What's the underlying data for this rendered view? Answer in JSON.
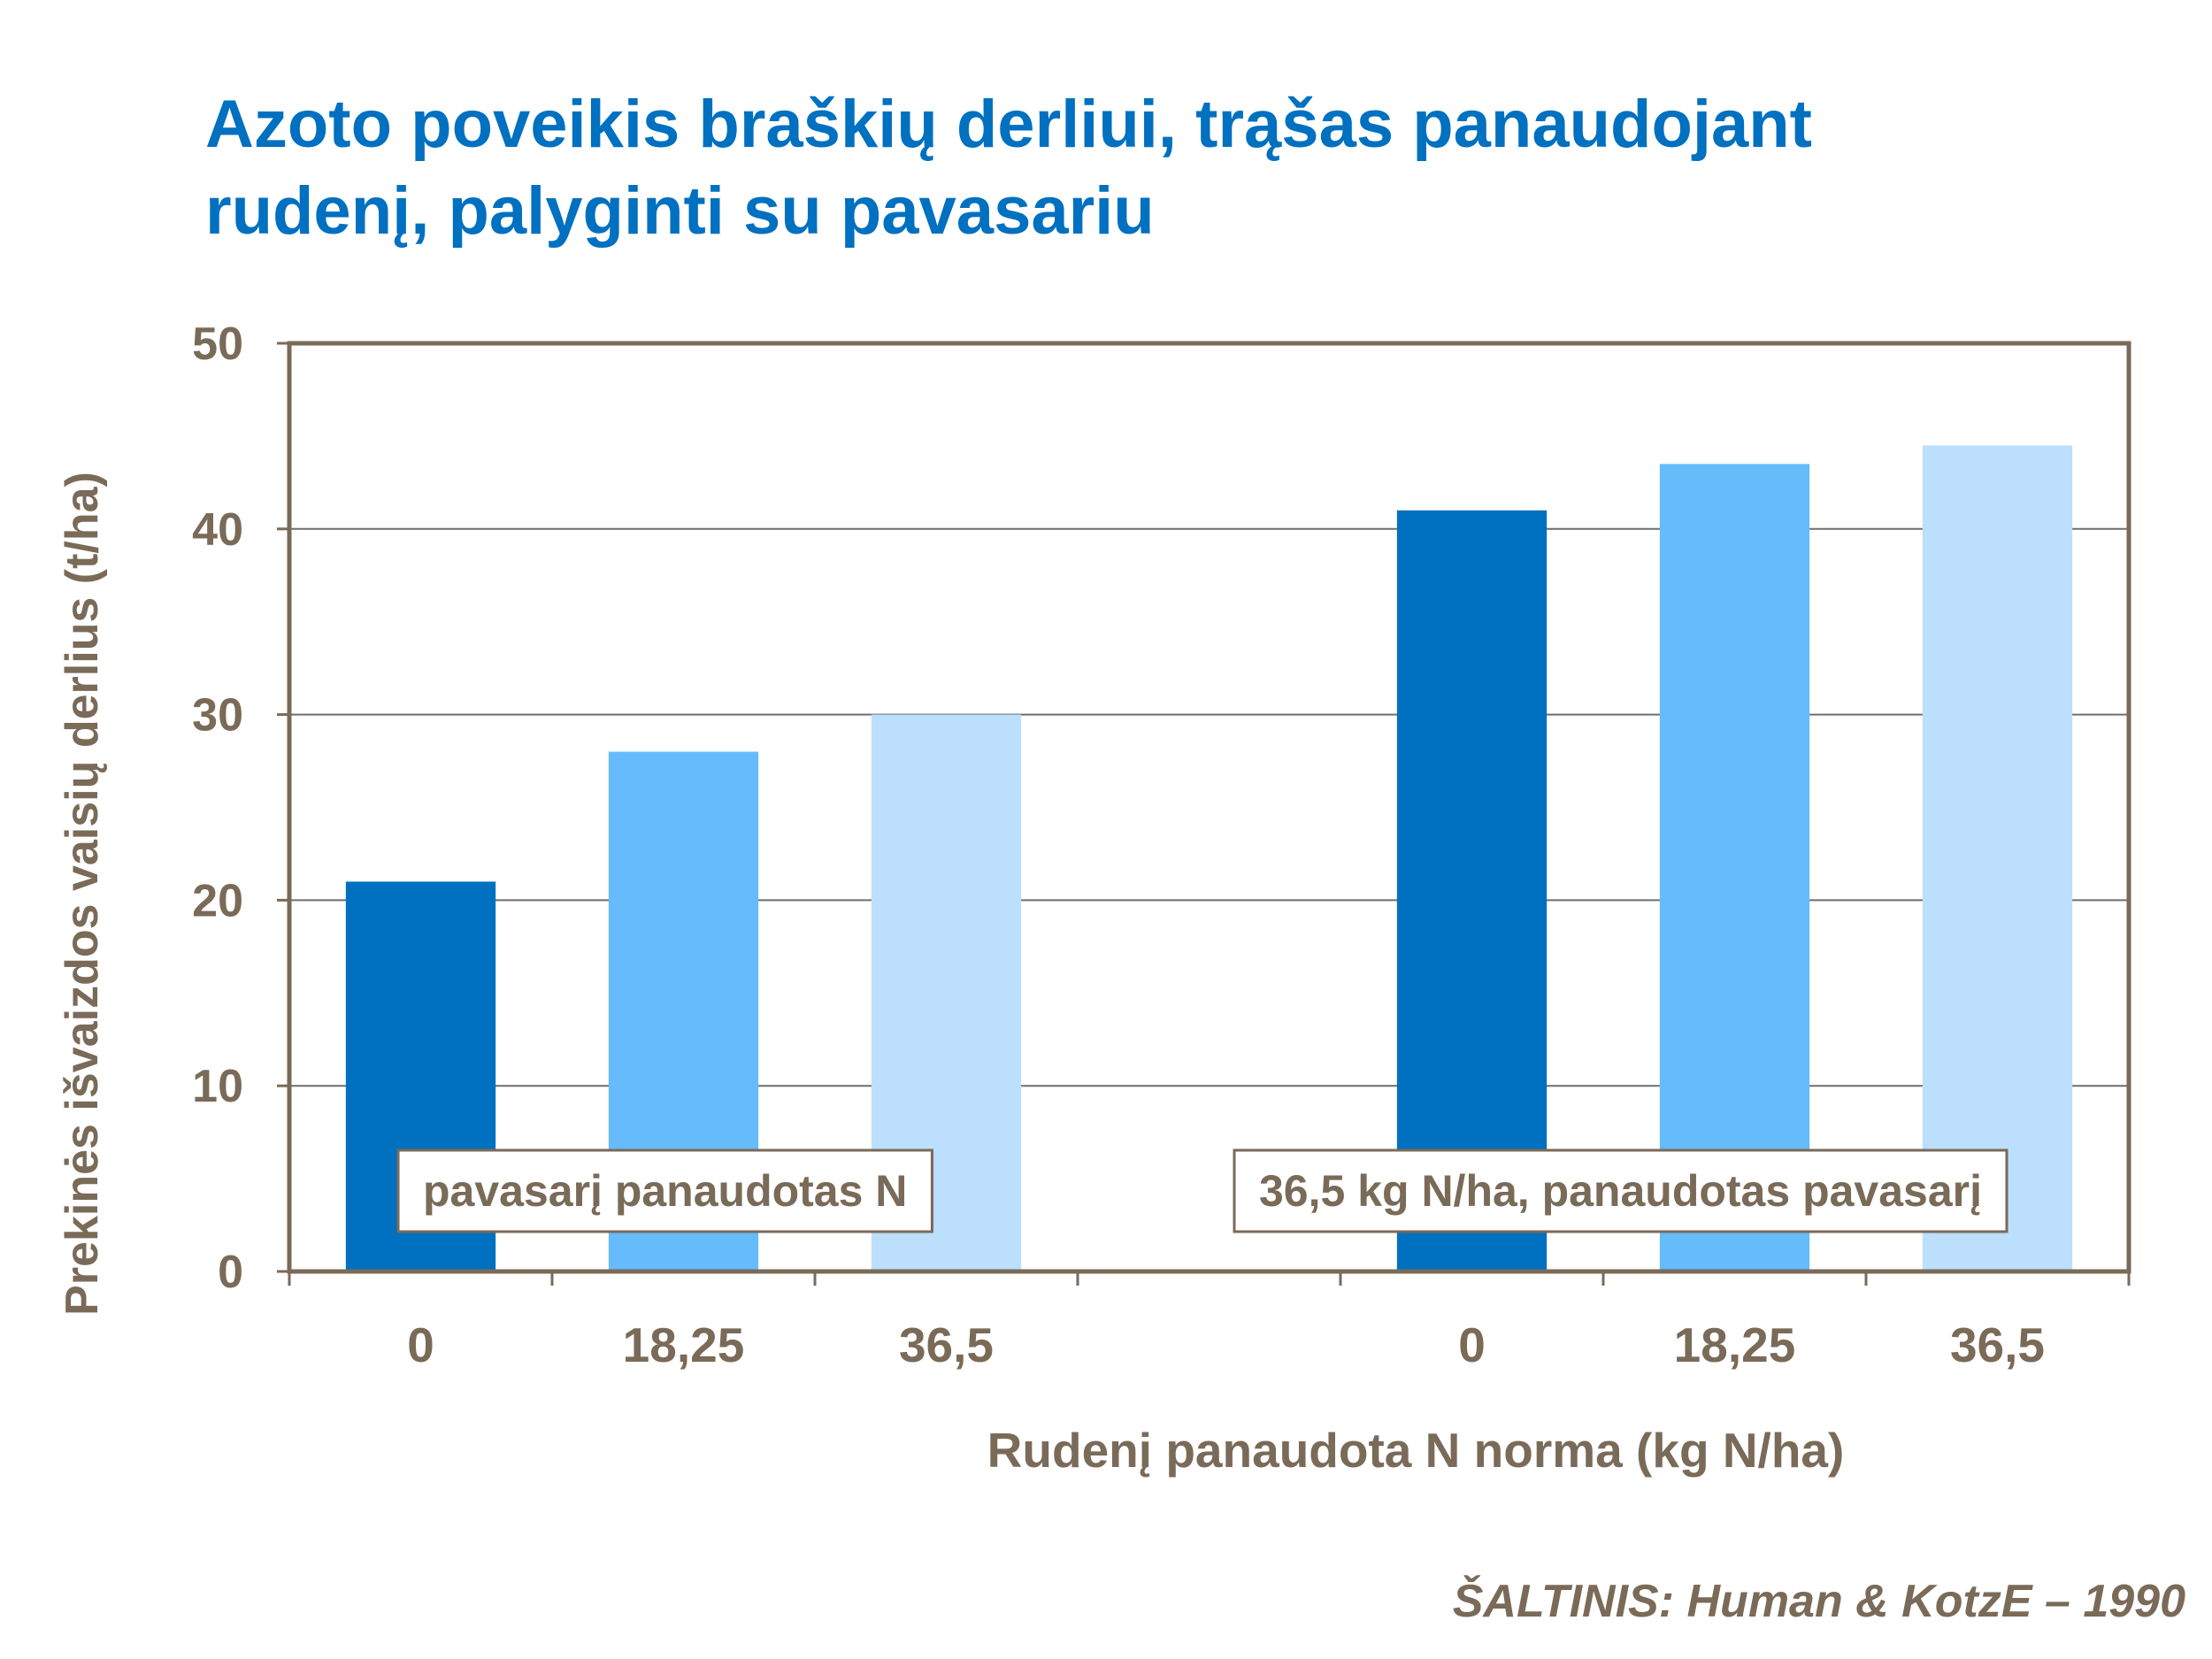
{
  "slide": {
    "title_line1": "Azoto poveikis braškių derliui, trąšas panaudojant",
    "title_line2": "rudenį, palyginti su pavasariu",
    "source": "ŠALTINIS:  Human & KotzE – 1990"
  },
  "colors": {
    "title": "#0070c0",
    "text": "#7a6a58",
    "axis": "#7a6a58",
    "grid": "#6e6e6e",
    "bar_0": "#0070c0",
    "bar_18_25": "#66bbfb",
    "bar_36_5": "#bbdffc"
  },
  "chart_data": {
    "type": "bar",
    "title": "",
    "ylabel": "Prekinės išvaizdos vaisių derlius (t/ha)",
    "xlabel": "Rudenį panaudota N norma (kg N/ha)",
    "ylim": [
      0,
      50
    ],
    "yticks": [
      "0",
      "10",
      "20",
      "30",
      "40",
      "50"
    ],
    "grid": true,
    "groups": [
      {
        "label": "pavasarį panaudotas N",
        "categories": [
          "0",
          "18,25",
          "36,5"
        ],
        "values": [
          21,
          28,
          30
        ],
        "colors": [
          "#0070c0",
          "#66bbfb",
          "#bbdffc"
        ]
      },
      {
        "label": "36,5 kg N/ha, panaudotas pavasarį",
        "categories": [
          "0",
          "18,25",
          "36,5"
        ],
        "values": [
          41,
          43.5,
          44.5
        ],
        "colors": [
          "#0070c0",
          "#66bbfb",
          "#bbdffc"
        ]
      }
    ]
  }
}
